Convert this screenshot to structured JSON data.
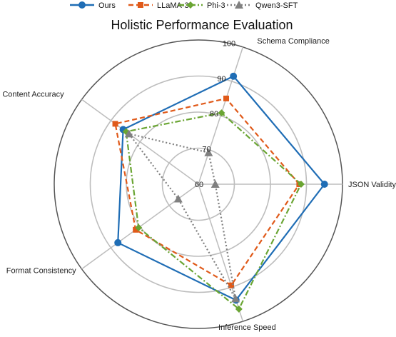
{
  "chart_data": {
    "type": "radar",
    "title": "Holistic Performance Evaluation",
    "axes": [
      "JSON Validity",
      "Schema Compliance",
      "Content Accuracy",
      "Format Consistency",
      "Inference Speed"
    ],
    "radial_ticks": [
      60,
      70,
      80,
      90,
      100
    ],
    "rlim": [
      60,
      100
    ],
    "grid": true,
    "legend_position": "top",
    "series": [
      {
        "name": "Ours",
        "values": [
          95.0,
          91.5,
          85.8,
          87.6,
          93.8
        ],
        "color": "#1f6db5",
        "line_style": "solid",
        "marker": "circle"
      },
      {
        "name": "LLaMA-3",
        "values": [
          88.0,
          85.0,
          88.5,
          81.5,
          89.5
        ],
        "color": "#e05a1a",
        "line_style": "dashed",
        "marker": "square"
      },
      {
        "name": "Phi-3",
        "values": [
          88.5,
          80.8,
          84.8,
          80.5,
          96.4
        ],
        "color": "#6aa533",
        "line_style": "dashdot",
        "marker": "diamond"
      },
      {
        "name": "Qwen3-SFT",
        "values": [
          64.7,
          69.2,
          83.8,
          66.9,
          93.4
        ],
        "color": "#808080",
        "line_style": "dotted",
        "marker": "triangle"
      }
    ]
  }
}
